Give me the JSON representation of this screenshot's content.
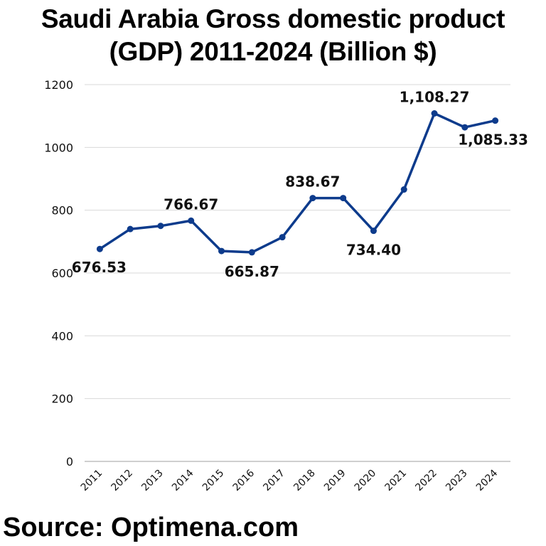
{
  "title_line1": "Saudi Arabia Gross domestic product",
  "title_line2": "(GDP) 2011-2024 (Billion $)",
  "source": "Source: Optimena.com",
  "colors": {
    "line": "#0d3b8c",
    "grid": "#d9d9d9",
    "baseline": "#bfbfbf"
  },
  "chart_data": {
    "type": "line",
    "title": "Saudi Arabia Gross domestic product (GDP) 2011-2024 (Billion $)",
    "xlabel": "",
    "ylabel": "",
    "ylim": [
      0,
      1200
    ],
    "yticks": [
      0,
      200,
      400,
      600,
      800,
      1000,
      1200
    ],
    "grid": true,
    "legend": null,
    "categories": [
      "2011",
      "2012",
      "2013",
      "2014",
      "2015",
      "2016",
      "2017",
      "2018",
      "2019",
      "2020",
      "2021",
      "2022",
      "2023",
      "2024"
    ],
    "series": [
      {
        "name": "GDP (Billion $)",
        "values": [
          676.53,
          740,
          750,
          766.67,
          670,
          665.87,
          714,
          838.67,
          838.67,
          734.4,
          866,
          1108.27,
          1064,
          1085.33
        ]
      }
    ],
    "data_labels": [
      {
        "index": 0,
        "text": "676.53",
        "pos": "below"
      },
      {
        "index": 3,
        "text": "766.67",
        "pos": "above"
      },
      {
        "index": 5,
        "text": "665.87",
        "pos": "below"
      },
      {
        "index": 7,
        "text": "838.67",
        "pos": "above"
      },
      {
        "index": 9,
        "text": "734.40",
        "pos": "below"
      },
      {
        "index": 11,
        "text": "1,108.27",
        "pos": "above"
      },
      {
        "index": 13,
        "text": "1,085.33",
        "pos": "below"
      }
    ]
  }
}
